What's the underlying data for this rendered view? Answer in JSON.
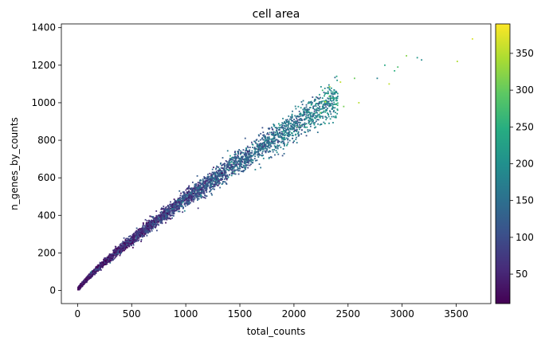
{
  "chart_data": {
    "type": "scatter",
    "title": "cell area",
    "xlabel": "total_counts",
    "ylabel": "n_genes_by_counts",
    "xlim": [
      -150,
      3820
    ],
    "ylim": [
      -70,
      1420
    ],
    "xticks": [
      0,
      500,
      1000,
      1500,
      2000,
      2500,
      3000,
      3500
    ],
    "yticks": [
      0,
      200,
      400,
      600,
      800,
      1000,
      1200,
      1400
    ],
    "grid": false,
    "colormap": "viridis",
    "colorbar": {
      "min": 10,
      "max": 390,
      "ticks": [
        50,
        100,
        150,
        200,
        250,
        300,
        350
      ]
    },
    "trend": {
      "relation": "n_genes_by_counts ≈ 1.37 × total_counts^0.85",
      "n_points_approx": 6000
    },
    "points": [
      {
        "x": 3650,
        "y": 1340,
        "c": 370
      },
      {
        "x": 3510,
        "y": 1220,
        "c": 345
      },
      {
        "x": 3180,
        "y": 1228,
        "c": 190
      },
      {
        "x": 3140,
        "y": 1240,
        "c": 215
      },
      {
        "x": 3040,
        "y": 1250,
        "c": 320
      },
      {
        "x": 2960,
        "y": 1190,
        "c": 280
      },
      {
        "x": 2930,
        "y": 1170,
        "c": 250
      },
      {
        "x": 2880,
        "y": 1100,
        "c": 355
      },
      {
        "x": 2840,
        "y": 1200,
        "c": 240
      },
      {
        "x": 2770,
        "y": 1130,
        "c": 175
      },
      {
        "x": 2600,
        "y": 1000,
        "c": 350
      },
      {
        "x": 2560,
        "y": 1130,
        "c": 305
      },
      {
        "x": 2430,
        "y": 1110,
        "c": 355
      },
      {
        "x": 2330,
        "y": 1085,
        "c": 330
      },
      {
        "x": 2290,
        "y": 1005,
        "c": 360
      },
      {
        "x": 2460,
        "y": 980,
        "c": 310
      }
    ]
  }
}
